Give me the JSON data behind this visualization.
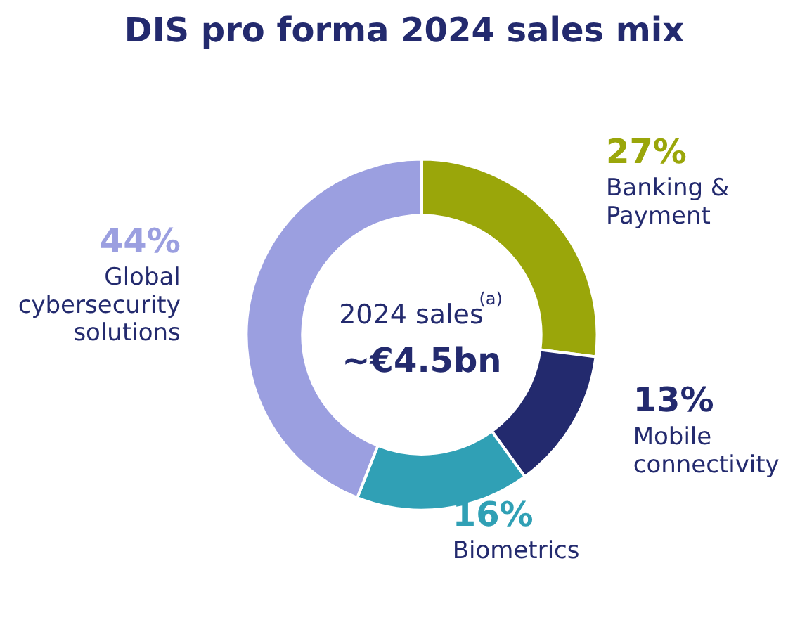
{
  "chart_data": {
    "type": "donut",
    "title": "DIS pro forma 2024 sales mix",
    "categories": [
      "Banking & Payment",
      "Mobile connectivity",
      "Biometrics",
      "Global cybersecurity solutions"
    ],
    "values": [
      27,
      13,
      16,
      44
    ],
    "colors": [
      "#9aa60a",
      "#232a6e",
      "#30a0b5",
      "#9b9fe0"
    ],
    "value_labels": [
      "27%",
      "13%",
      "16%",
      "44%"
    ],
    "annotations": [
      "2024 sales$^{(a)}$",
      "~€4.5bn"
    ],
    "legend": false
  }
}
